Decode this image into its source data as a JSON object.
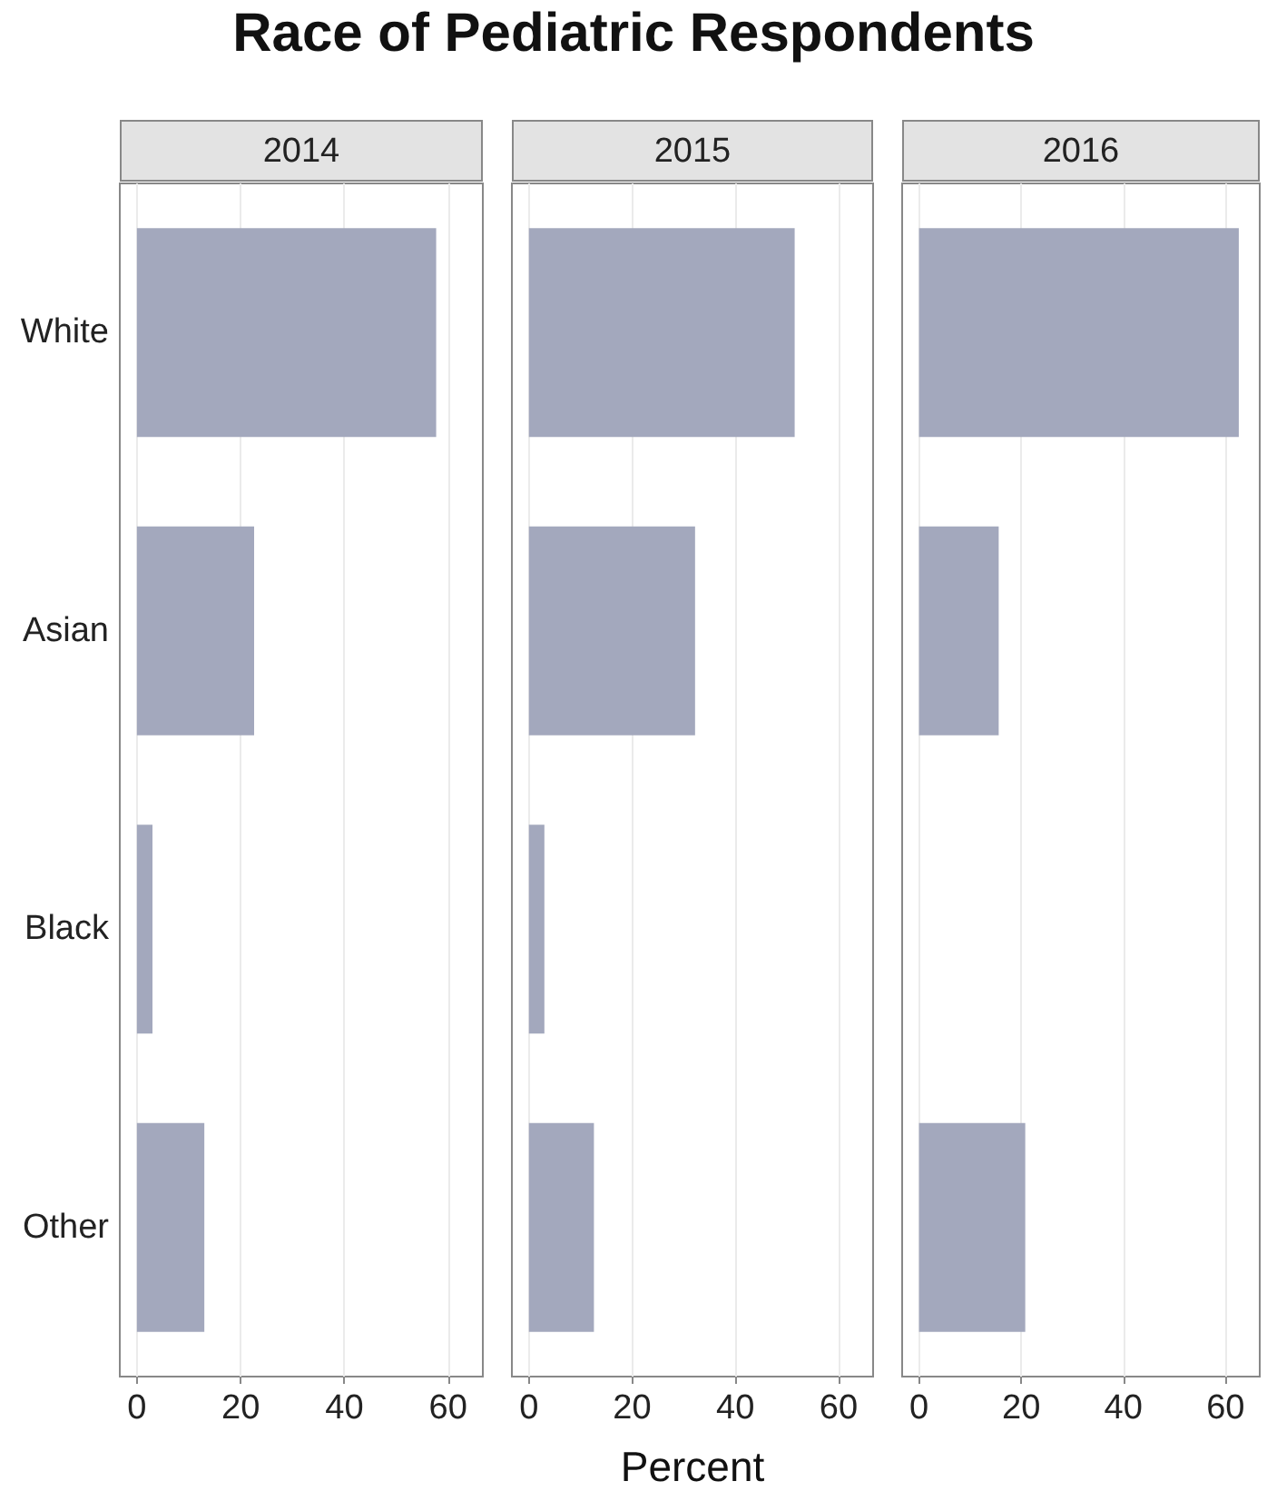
{
  "chart_data": [
    {
      "type": "bar",
      "orientation": "horizontal",
      "title": "Race of Pediatric Respondents",
      "subtitle": "2014",
      "categories": [
        "White",
        "Asian",
        "Black",
        "Other"
      ],
      "values": [
        57.7,
        22.6,
        3,
        13
      ],
      "color": "#a3a8bd",
      "xlim": [
        -3.3,
        66.7
      ],
      "xticks": [
        0,
        20,
        40,
        60
      ],
      "grid": "x"
    },
    {
      "type": "bar",
      "orientation": "horizontal",
      "subtitle": "2015",
      "xlabel": "Percent",
      "categories": [
        "White",
        "Asian",
        "Black",
        "Other"
      ],
      "values": [
        51.5,
        32.2,
        3,
        12.6
      ],
      "color": "#a3a8bd",
      "xlim": [
        -3.3,
        66.7
      ],
      "xticks": [
        0,
        20,
        40,
        60
      ],
      "grid": "x",
      "tick_labels": "x"
    },
    {
      "type": "bar",
      "orientation": "horizontal",
      "subtitle": "2016",
      "categories": [
        "White",
        "Asian",
        "Black",
        "Other"
      ],
      "values": [
        62.6,
        15.6,
        null,
        20.8
      ],
      "color": "#a3a8bd",
      "xlim": [
        -3.3,
        66.7
      ],
      "xticks": [
        0,
        20,
        40,
        60
      ],
      "grid": "x",
      "tick_labels": "x"
    }
  ]
}
